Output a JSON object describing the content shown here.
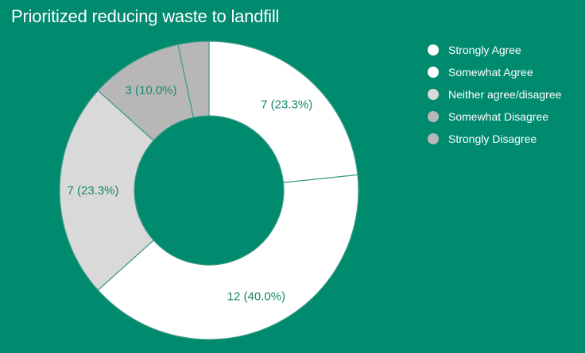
{
  "chart_data": {
    "type": "pie",
    "title": "Prioritized reducing waste to landfill",
    "donut": true,
    "legend_position": "right",
    "categories": [
      "Strongly Agree",
      "Somewhat Agree",
      "Neither agree/disagree",
      "Somewhat Disagree",
      "Strongly Disagree"
    ],
    "values": [
      7,
      12,
      7,
      3,
      1
    ],
    "data_labels": [
      "7 (23.3%)",
      "12 (40.0%)",
      "7 (23.3%)",
      "3 (10.0%)",
      ""
    ],
    "colors": [
      "#ffffff",
      "#ffffff",
      "#d9d9d9",
      "#b7b7b7",
      "#b7b7b7"
    ],
    "label_colors": [
      "#17876c",
      "#17876c",
      "#17876c",
      "#17876c",
      "#17876c"
    ],
    "background": "#008a6e"
  }
}
